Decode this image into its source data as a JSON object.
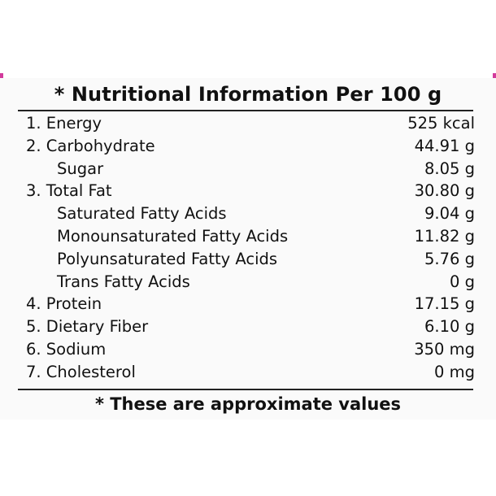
{
  "panel": {
    "title": "* Nutritional Information Per 100 g",
    "footnote": "* These are approximate values"
  },
  "rows": [
    {
      "name": "1. Energy",
      "value": "525 kcal",
      "indent": false
    },
    {
      "name": "2. Carbohydrate",
      "value": "44.91 g",
      "indent": false
    },
    {
      "name": "Sugar",
      "value": "8.05 g",
      "indent": true
    },
    {
      "name": "3. Total Fat",
      "value": "30.80 g",
      "indent": false
    },
    {
      "name": "Saturated Fatty Acids",
      "value": "9.04 g",
      "indent": true
    },
    {
      "name": "Monounsaturated Fatty Acids",
      "value": "11.82 g",
      "indent": true
    },
    {
      "name": "Polyunsaturated Fatty Acids",
      "value": "5.76 g",
      "indent": true
    },
    {
      "name": "Trans Fatty Acids",
      "value": "0 g",
      "indent": true
    },
    {
      "name": "4. Protein",
      "value": "17.15 g",
      "indent": false
    },
    {
      "name": "5. Dietary Fiber",
      "value": "6.10 g",
      "indent": false
    },
    {
      "name": "6. Sodium",
      "value": "350 mg",
      "indent": false
    },
    {
      "name": "7. Cholesterol",
      "value": "0 mg",
      "indent": false
    }
  ],
  "colors": {
    "text": "#111111",
    "panel_background": "#fafafa",
    "edge_accent": "#d23a9c"
  }
}
